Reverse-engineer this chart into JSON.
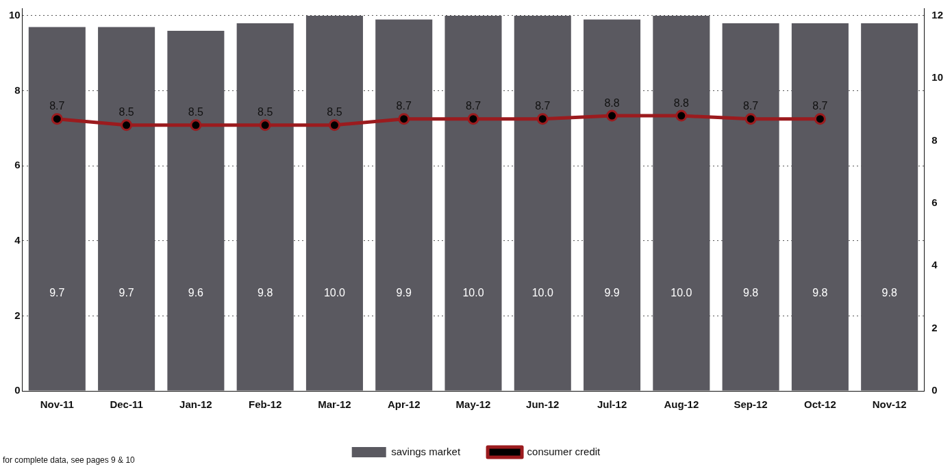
{
  "chart_data": {
    "type": "bar",
    "categories": [
      "Nov-11",
      "Dec-11",
      "Jan-12",
      "Feb-12",
      "Mar-12",
      "Apr-12",
      "May-12",
      "Jun-12",
      "Jul-12",
      "Aug-12",
      "Sep-12",
      "Oct-12",
      "Nov-12"
    ],
    "series": [
      {
        "name": "savings market",
        "color": "#5a5960",
        "values": [
          9.7,
          9.7,
          9.6,
          9.8,
          10.0,
          9.9,
          10.0,
          10.0,
          9.9,
          10.0,
          9.8,
          9.8,
          9.8
        ],
        "value_labels": [
          "9.7",
          "9.7",
          "9.6",
          "9.8",
          "10.0",
          "9.9",
          "10.0",
          "10.0",
          "9.9",
          "10.0",
          "9.8",
          "9.8",
          "9.8"
        ]
      },
      {
        "name": "consumer credit",
        "type": "line",
        "axis": "y2",
        "color": "#9b1b1e",
        "values": [
          8.7,
          8.5,
          8.5,
          8.5,
          8.5,
          8.7,
          8.7,
          8.7,
          8.8,
          8.8,
          8.7,
          8.7,
          null
        ],
        "value_labels": [
          "8.7",
          "8.5",
          "8.5",
          "8.5",
          "8.5",
          "8.7",
          "8.7",
          "8.7",
          "8.8",
          "8.8",
          "8.7",
          "8.7",
          null
        ]
      }
    ],
    "ylim": [
      0,
      10.2
    ],
    "yticks": [
      0,
      2,
      4,
      6,
      8,
      10
    ],
    "y2lim": [
      0,
      12.24
    ],
    "y2ticks": [
      0,
      2,
      4,
      6,
      8,
      10,
      12
    ],
    "grid": "y",
    "legend": "bottom",
    "marker": "circle",
    "annotations": [
      "for complete data, see pages 9 & 10"
    ]
  }
}
